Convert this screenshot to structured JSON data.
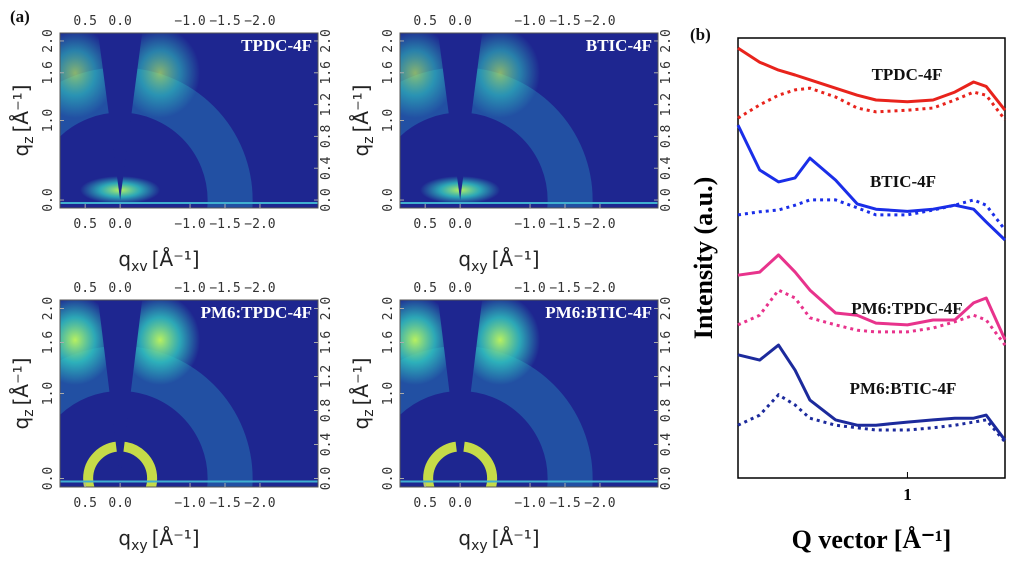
{
  "chart_data": [
    {
      "type": "image",
      "label": "(a)",
      "xlim": [
        0.86,
        -2.83
      ],
      "xticks": [
        0.5,
        {
          "value": 0,
          "label": "0.0"
        },
        {
          "value": -1,
          "label": "−1.0"
        },
        {
          "value": -1.5,
          "label": "−1.5"
        },
        {
          "value": -2,
          "label": "−2.0"
        }
      ],
      "ylim": [
        -0.1,
        2.1
      ],
      "yticks": [
        {
          "value": 0,
          "label": "0.0"
        },
        {
          "value": 1,
          "label": "1.0"
        },
        1.6,
        {
          "value": 2,
          "label": "2.0"
        }
      ],
      "y2ticks": [
        {
          "value": 0,
          "label": "0.0"
        },
        0.4,
        0.8,
        1.2,
        1.6,
        {
          "value": 2,
          "label": "2.0"
        }
      ],
      "ylabel": {
        "base": "q",
        "sub": "z",
        "unit": "[Å⁻¹]"
      },
      "panels": [
        {
          "title": "TPDC-4F",
          "xlabel": {
            "base": "q",
            "sub": "xv",
            "unit": "[Å⁻¹]"
          }
        },
        {
          "title": "BTIC-4F",
          "xlabel": {
            "base": "q",
            "sub": "xy",
            "unit": "[Å⁻¹]"
          }
        },
        {
          "title": "PM6:TPDC-4F",
          "xlabel": {
            "base": "q",
            "sub": "xy",
            "unit": "[Å⁻¹]"
          }
        },
        {
          "title": "PM6:BTIC-4F",
          "xlabel": {
            "base": "q",
            "sub": "xy",
            "unit": "[Å⁻¹]"
          }
        }
      ]
    },
    {
      "type": "line",
      "label": "(b)",
      "log_x": true,
      "xlabel": "Q vector [Å⁻¹]",
      "ylabel": "Intensity (a.u.)",
      "xlim": [
        0.3,
        2.0
      ],
      "xticks": [
        1
      ],
      "ylim": [
        0,
        100
      ],
      "x": [
        0.3,
        0.35,
        0.4,
        0.45,
        0.5,
        0.6,
        0.7,
        0.8,
        1.0,
        1.2,
        1.4,
        1.6,
        1.75,
        2.0
      ],
      "series": [
        {
          "name": "TPDC-4F",
          "color": "#e8231c",
          "values": [
            97.7,
            94.5,
            92.7,
            91.6,
            90.5,
            88.6,
            87,
            85.9,
            85.5,
            85.9,
            87.7,
            90,
            89,
            83.6
          ],
          "dotted_values": [
            81.8,
            84.8,
            87,
            88.2,
            88.6,
            86.6,
            84.1,
            83.2,
            83.6,
            84.1,
            85.9,
            87.7,
            87,
            81.4
          ]
        },
        {
          "name": "BTIC-4F",
          "color": "#1a2ee8",
          "values": [
            80.2,
            70,
            67.3,
            68.2,
            72.7,
            67.7,
            62.3,
            61.1,
            60.6,
            61.1,
            62,
            61.1,
            58.2,
            54.1
          ],
          "dotted_values": [
            59.8,
            60.5,
            60.9,
            62,
            63.2,
            63.2,
            61.4,
            59.8,
            59.8,
            60.9,
            62,
            63.2,
            62,
            56.4
          ]
        },
        {
          "name": "PM6:TPDC-4F",
          "color": "#e8338c",
          "values": [
            46.1,
            46.8,
            50.7,
            46.8,
            42.7,
            37.5,
            37,
            35.2,
            34.8,
            35.9,
            35.9,
            39.8,
            40.9,
            31.4
          ],
          "dotted_values": [
            34.8,
            37,
            42.7,
            40.9,
            36.4,
            34.8,
            33.6,
            33.2,
            33.2,
            34.1,
            35.5,
            37,
            35.9,
            30.2
          ]
        },
        {
          "name": "PM6:BTIC-4F",
          "color": "#1c2a9c",
          "values": [
            28,
            26.8,
            30.2,
            24.5,
            17.7,
            13.2,
            12,
            12,
            12.7,
            13.2,
            13.6,
            13.6,
            14.3,
            8.6
          ],
          "dotted_values": [
            12,
            14.3,
            18.9,
            16.6,
            13.6,
            12,
            11.4,
            10.9,
            10.9,
            11.4,
            12,
            12.7,
            13.2,
            8.2
          ]
        }
      ]
    }
  ]
}
